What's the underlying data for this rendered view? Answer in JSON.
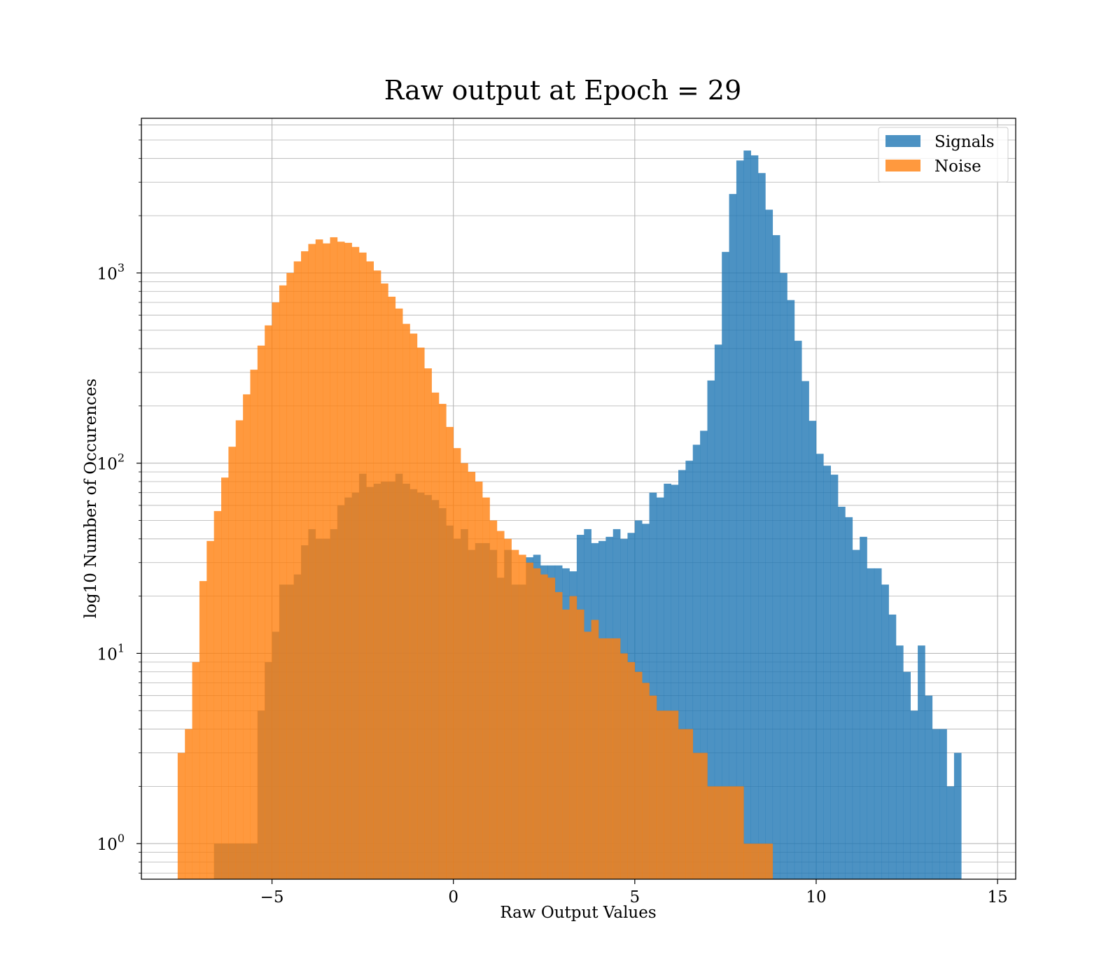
{
  "chart_data": {
    "type": "histogram",
    "title": "Raw output at Epoch = 29",
    "xlabel": "Raw Output Values",
    "ylabel": "log10 Number of Occurences",
    "xlim": [
      -8.6,
      15.5
    ],
    "ylim": [
      0.65,
      6500
    ],
    "yscale": "log",
    "grid": true,
    "legend_position": "top-right",
    "x_ticks": [
      -5,
      0,
      5,
      10,
      15
    ],
    "x_tick_labels": [
      "−5",
      "0",
      "5",
      "10",
      "15"
    ],
    "y_ticks": [
      1,
      10,
      100,
      1000
    ],
    "y_tick_labels": [
      {
        "base": "10",
        "exp": "0"
      },
      {
        "base": "10",
        "exp": "1"
      },
      {
        "base": "10",
        "exp": "2"
      },
      {
        "base": "10",
        "exp": "3"
      }
    ],
    "series": [
      {
        "name": "Signals",
        "color": "#1f77b4",
        "opacity": 0.8,
        "bins": [
          [
            -6.6,
            -6.4,
            1
          ],
          [
            -6.4,
            -6.2,
            1
          ],
          [
            -6.2,
            -6.0,
            1
          ],
          [
            -6.0,
            -5.8,
            1
          ],
          [
            -5.8,
            -5.6,
            1
          ],
          [
            -5.6,
            -5.4,
            1
          ],
          [
            -5.4,
            -5.2,
            5
          ],
          [
            -5.2,
            -5.0,
            9
          ],
          [
            -5.0,
            -4.8,
            13
          ],
          [
            -4.8,
            -4.6,
            23
          ],
          [
            -4.6,
            -4.4,
            23
          ],
          [
            -4.4,
            -4.2,
            26
          ],
          [
            -4.2,
            -4.0,
            37
          ],
          [
            -4.0,
            -3.8,
            45
          ],
          [
            -3.8,
            -3.6,
            40
          ],
          [
            -3.6,
            -3.4,
            40
          ],
          [
            -3.4,
            -3.2,
            45
          ],
          [
            -3.2,
            -3.0,
            60
          ],
          [
            -3.0,
            -2.8,
            66
          ],
          [
            -2.8,
            -2.6,
            70
          ],
          [
            -2.6,
            -2.4,
            88
          ],
          [
            -2.4,
            -2.2,
            75
          ],
          [
            -2.2,
            -2.0,
            78
          ],
          [
            -2.0,
            -1.8,
            80
          ],
          [
            -1.8,
            -1.6,
            80
          ],
          [
            -1.6,
            -1.4,
            88
          ],
          [
            -1.4,
            -1.2,
            78
          ],
          [
            -1.2,
            -1.0,
            73
          ],
          [
            -1.0,
            -0.8,
            70
          ],
          [
            -0.8,
            -0.6,
            68
          ],
          [
            -0.6,
            -0.4,
            64
          ],
          [
            -0.4,
            -0.2,
            58
          ],
          [
            -0.2,
            0.0,
            47
          ],
          [
            0.0,
            0.2,
            40
          ],
          [
            0.2,
            0.4,
            45
          ],
          [
            0.4,
            0.6,
            35
          ],
          [
            0.6,
            0.8,
            38
          ],
          [
            0.8,
            1.0,
            38
          ],
          [
            1.0,
            1.2,
            35
          ],
          [
            1.2,
            1.4,
            25
          ],
          [
            1.4,
            1.6,
            35
          ],
          [
            1.6,
            1.8,
            23
          ],
          [
            1.8,
            2.0,
            23
          ],
          [
            2.0,
            2.2,
            32
          ],
          [
            2.2,
            2.4,
            33
          ],
          [
            2.4,
            2.6,
            29
          ],
          [
            2.6,
            2.8,
            29
          ],
          [
            2.8,
            3.0,
            29
          ],
          [
            3.0,
            3.2,
            28
          ],
          [
            3.2,
            3.4,
            27
          ],
          [
            3.4,
            3.6,
            42
          ],
          [
            3.6,
            3.8,
            45
          ],
          [
            3.8,
            4.0,
            38
          ],
          [
            4.0,
            4.2,
            39
          ],
          [
            4.2,
            4.4,
            41
          ],
          [
            4.4,
            4.6,
            45
          ],
          [
            4.6,
            4.8,
            40
          ],
          [
            4.8,
            5.0,
            43
          ],
          [
            5.0,
            5.2,
            50
          ],
          [
            5.2,
            5.4,
            48
          ],
          [
            5.4,
            5.6,
            70
          ],
          [
            5.6,
            5.8,
            66
          ],
          [
            5.8,
            6.0,
            78
          ],
          [
            6.0,
            6.2,
            77
          ],
          [
            6.2,
            6.4,
            92
          ],
          [
            6.4,
            6.6,
            103
          ],
          [
            6.6,
            6.8,
            125
          ],
          [
            6.8,
            7.0,
            148
          ],
          [
            7.0,
            7.2,
            272
          ],
          [
            7.2,
            7.4,
            420
          ],
          [
            7.4,
            7.6,
            1290
          ],
          [
            7.6,
            7.8,
            2600
          ],
          [
            7.8,
            8.0,
            3900
          ],
          [
            8.0,
            8.2,
            4400
          ],
          [
            8.2,
            8.4,
            4150
          ],
          [
            8.4,
            8.6,
            3350
          ],
          [
            8.6,
            8.8,
            2150
          ],
          [
            8.8,
            9.0,
            1580
          ],
          [
            9.0,
            9.2,
            1000
          ],
          [
            9.2,
            9.4,
            720
          ],
          [
            9.4,
            9.6,
            440
          ],
          [
            9.6,
            9.8,
            270
          ],
          [
            9.8,
            10.0,
            167
          ],
          [
            10.0,
            10.2,
            112
          ],
          [
            10.2,
            10.4,
            97
          ],
          [
            10.4,
            10.6,
            87
          ],
          [
            10.6,
            10.8,
            59
          ],
          [
            10.8,
            11.0,
            52
          ],
          [
            11.0,
            11.2,
            35
          ],
          [
            11.2,
            11.4,
            41
          ],
          [
            11.4,
            11.6,
            28
          ],
          [
            11.6,
            11.8,
            28
          ],
          [
            11.8,
            12.0,
            23
          ],
          [
            12.0,
            12.2,
            16
          ],
          [
            12.2,
            12.4,
            11
          ],
          [
            12.4,
            12.6,
            8
          ],
          [
            12.6,
            12.8,
            5
          ],
          [
            12.8,
            13.0,
            11
          ],
          [
            13.0,
            13.2,
            6
          ],
          [
            13.2,
            13.4,
            4
          ],
          [
            13.4,
            13.6,
            4
          ],
          [
            13.6,
            13.8,
            2
          ],
          [
            13.8,
            14.0,
            3
          ]
        ]
      },
      {
        "name": "Noise",
        "color": "#ff7f0e",
        "opacity": 0.8,
        "bins": [
          [
            -7.6,
            -7.4,
            3
          ],
          [
            -7.4,
            -7.2,
            4
          ],
          [
            -7.2,
            -7.0,
            9
          ],
          [
            -7.0,
            -6.8,
            24
          ],
          [
            -6.8,
            -6.6,
            39
          ],
          [
            -6.6,
            -6.4,
            56
          ],
          [
            -6.4,
            -6.2,
            84
          ],
          [
            -6.2,
            -6.0,
            122
          ],
          [
            -6.0,
            -5.8,
            168
          ],
          [
            -5.8,
            -5.6,
            230
          ],
          [
            -5.6,
            -5.4,
            310
          ],
          [
            -5.4,
            -5.2,
            415
          ],
          [
            -5.2,
            -5.0,
            530
          ],
          [
            -5.0,
            -4.8,
            700
          ],
          [
            -4.8,
            -4.6,
            860
          ],
          [
            -4.6,
            -4.4,
            1000
          ],
          [
            -4.4,
            -4.2,
            1150
          ],
          [
            -4.2,
            -4.0,
            1300
          ],
          [
            -4.0,
            -3.8,
            1420
          ],
          [
            -3.8,
            -3.6,
            1500
          ],
          [
            -3.6,
            -3.4,
            1430
          ],
          [
            -3.4,
            -3.2,
            1540
          ],
          [
            -3.2,
            -3.0,
            1460
          ],
          [
            -3.0,
            -2.8,
            1440
          ],
          [
            -2.8,
            -2.6,
            1370
          ],
          [
            -2.6,
            -2.4,
            1280
          ],
          [
            -2.4,
            -2.2,
            1150
          ],
          [
            -2.2,
            -2.0,
            1030
          ],
          [
            -2.0,
            -1.8,
            880
          ],
          [
            -1.8,
            -1.6,
            750
          ],
          [
            -1.6,
            -1.4,
            650
          ],
          [
            -1.4,
            -1.2,
            540
          ],
          [
            -1.2,
            -1.0,
            480
          ],
          [
            -1.0,
            -0.8,
            405
          ],
          [
            -0.8,
            -0.6,
            315
          ],
          [
            -0.6,
            -0.4,
            235
          ],
          [
            -0.4,
            -0.2,
            205
          ],
          [
            -0.2,
            0.0,
            155
          ],
          [
            0.0,
            0.2,
            120
          ],
          [
            0.2,
            0.4,
            100
          ],
          [
            0.4,
            0.6,
            90
          ],
          [
            0.6,
            0.8,
            80
          ],
          [
            0.8,
            1.0,
            66
          ],
          [
            1.0,
            1.2,
            50
          ],
          [
            1.2,
            1.4,
            44
          ],
          [
            1.4,
            1.6,
            40
          ],
          [
            1.6,
            1.8,
            35
          ],
          [
            1.8,
            2.0,
            33
          ],
          [
            2.0,
            2.2,
            30
          ],
          [
            2.2,
            2.4,
            28
          ],
          [
            2.4,
            2.6,
            26
          ],
          [
            2.6,
            2.8,
            25
          ],
          [
            2.8,
            3.0,
            21
          ],
          [
            3.0,
            3.2,
            17
          ],
          [
            3.2,
            3.4,
            20
          ],
          [
            3.4,
            3.6,
            17
          ],
          [
            3.6,
            3.8,
            13
          ],
          [
            3.8,
            4.0,
            15
          ],
          [
            4.0,
            4.2,
            12
          ],
          [
            4.2,
            4.4,
            12
          ],
          [
            4.4,
            4.6,
            12
          ],
          [
            4.6,
            4.8,
            10
          ],
          [
            4.8,
            5.0,
            9
          ],
          [
            5.0,
            5.2,
            8
          ],
          [
            5.2,
            5.4,
            7
          ],
          [
            5.4,
            5.6,
            6
          ],
          [
            5.6,
            5.8,
            5
          ],
          [
            5.8,
            6.0,
            5
          ],
          [
            6.0,
            6.2,
            5
          ],
          [
            6.2,
            6.4,
            4
          ],
          [
            6.4,
            6.6,
            4
          ],
          [
            6.6,
            6.8,
            3
          ],
          [
            6.8,
            7.0,
            3
          ],
          [
            7.0,
            7.2,
            2
          ],
          [
            7.2,
            7.4,
            2
          ],
          [
            7.4,
            7.6,
            2
          ],
          [
            7.6,
            7.8,
            2
          ],
          [
            7.8,
            8.0,
            2
          ],
          [
            8.0,
            8.2,
            1
          ],
          [
            8.2,
            8.4,
            1
          ],
          [
            8.4,
            8.6,
            1
          ],
          [
            8.6,
            8.8,
            1
          ]
        ]
      }
    ]
  }
}
